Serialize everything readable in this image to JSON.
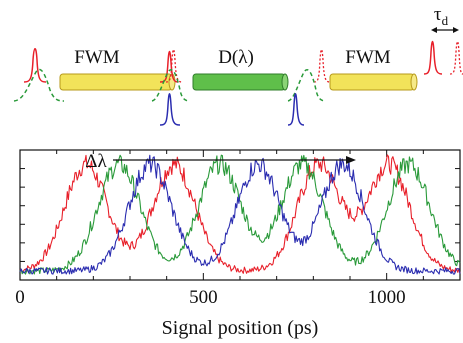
{
  "diagram": {
    "stage1_label": "FWM",
    "stage2_label": "D(λ)",
    "stage3_label": "FWM",
    "delay_label": "τ",
    "delay_subscript": "d",
    "colors": {
      "fwm_fill": "#f2e35a",
      "fwm_stroke": "#b79a1a",
      "dispersion_fill": "#5fbf4a",
      "dispersion_stroke": "#2f7d2a",
      "red": "#e8202a",
      "green": "#2a9a3a",
      "blue": "#2b2db0"
    }
  },
  "chart_data": {
    "type": "line",
    "annotation": "Δλ",
    "xlabel": "Signal position (ps)",
    "ylabel": "",
    "xlim": [
      0,
      1200
    ],
    "ylim": [
      0,
      1
    ],
    "xticks": [
      0,
      500,
      1000
    ],
    "xtick_labels": [
      "0",
      "500",
      "1000"
    ],
    "grid": false,
    "series": [
      {
        "color": "#e8202a",
        "centers": [
          180,
          420,
          815,
          1005
        ],
        "amplitude": 0.82,
        "width": 58
      },
      {
        "color": "#2a9a3a",
        "centers": [
          270,
          545,
          770,
          1060
        ],
        "amplitude": 0.82,
        "width": 58
      },
      {
        "color": "#2b2db0",
        "centers": [
          355,
          650,
          880
        ],
        "amplitude": 0.82,
        "width": 58
      }
    ],
    "baseline": 0.07
  }
}
